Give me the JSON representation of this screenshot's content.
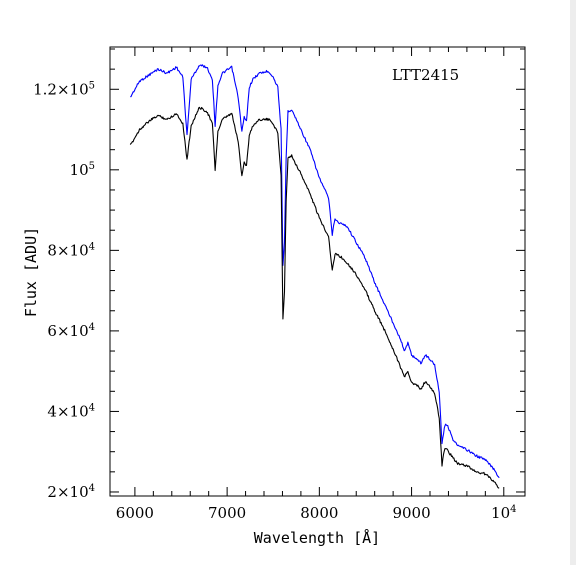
{
  "chart_data": {
    "type": "line",
    "annotation": "LTT2415",
    "xlabel": "Wavelength [Å]",
    "ylabel": "Flux [ADU]",
    "xlim": [
      5730,
      10230
    ],
    "ylim": [
      19000,
      130500
    ],
    "x_ticks": [
      {
        "value": 6000,
        "base": "6000",
        "sup": ""
      },
      {
        "value": 7000,
        "base": "7000",
        "sup": ""
      },
      {
        "value": 8000,
        "base": "8000",
        "sup": ""
      },
      {
        "value": 9000,
        "base": "9000",
        "sup": ""
      },
      {
        "value": 10000,
        "base": "10",
        "sup": "4"
      }
    ],
    "y_ticks": [
      {
        "value": 20000,
        "base": "2×10",
        "sup": "4"
      },
      {
        "value": 40000,
        "base": "4×10",
        "sup": "4"
      },
      {
        "value": 60000,
        "base": "6×10",
        "sup": "4"
      },
      {
        "value": 80000,
        "base": "8×10",
        "sup": "4"
      },
      {
        "value": 100000,
        "base": "10",
        "sup": "5"
      },
      {
        "value": 120000,
        "base": "1.2×10",
        "sup": "5"
      }
    ],
    "series": [
      {
        "color": "#0000ff",
        "x": [
          5950,
          6050,
          6150,
          6250,
          6350,
          6450,
          6520,
          6565,
          6610,
          6700,
          6780,
          6840,
          6870,
          6900,
          6950,
          7050,
          7120,
          7160,
          7185,
          7210,
          7240,
          7280,
          7350,
          7450,
          7500,
          7550,
          7585,
          7605,
          7622,
          7640,
          7660,
          7700,
          7800,
          7900,
          8000,
          8100,
          8140,
          8170,
          8200,
          8300,
          8400,
          8500,
          8600,
          8700,
          8800,
          8880,
          8920,
          8960,
          9000,
          9060,
          9100,
          9150,
          9200,
          9250,
          9300,
          9330,
          9355,
          9370,
          9400,
          9450,
          9500,
          9600,
          9700,
          9800,
          9900,
          9950
        ],
        "y": [
          118000,
          122000,
          123500,
          125000,
          124000,
          125500,
          123000,
          108500,
          122500,
          126000,
          125500,
          122500,
          111000,
          121000,
          124000,
          125500,
          118000,
          109500,
          113000,
          112000,
          120500,
          122500,
          124000,
          124500,
          123000,
          120500,
          110000,
          76000,
          82000,
          103000,
          114500,
          115000,
          110000,
          105000,
          98000,
          93000,
          84000,
          88000,
          87000,
          86000,
          82000,
          78000,
          72000,
          67000,
          62000,
          58000,
          55000,
          57000,
          54000,
          53000,
          52000,
          54000,
          53000,
          51500,
          45000,
          32000,
          36000,
          37000,
          36000,
          33000,
          31500,
          30500,
          29000,
          28000,
          25500,
          23500
        ]
      },
      {
        "color": "#000000",
        "x": [
          5950,
          6050,
          6150,
          6250,
          6350,
          6450,
          6520,
          6565,
          6610,
          6700,
          6780,
          6840,
          6870,
          6900,
          6950,
          7050,
          7120,
          7160,
          7185,
          7210,
          7240,
          7280,
          7350,
          7450,
          7500,
          7550,
          7585,
          7605,
          7622,
          7640,
          7660,
          7700,
          7800,
          7900,
          8000,
          8100,
          8140,
          8170,
          8200,
          8300,
          8400,
          8500,
          8600,
          8700,
          8800,
          8880,
          8920,
          8960,
          9000,
          9060,
          9100,
          9150,
          9200,
          9250,
          9300,
          9330,
          9355,
          9370,
          9400,
          9450,
          9500,
          9600,
          9700,
          9800,
          9900,
          9950
        ],
        "y": [
          106000,
          110000,
          112000,
          113500,
          112500,
          114000,
          111500,
          102500,
          111000,
          115500,
          114500,
          111500,
          100000,
          109500,
          112500,
          114000,
          107000,
          98500,
          102000,
          101000,
          108500,
          111000,
          112500,
          112500,
          111500,
          109000,
          98500,
          63000,
          70000,
          92000,
          103000,
          103500,
          99000,
          94000,
          88000,
          83500,
          75000,
          79000,
          79000,
          77000,
          74000,
          70000,
          65000,
          60500,
          55500,
          51000,
          48500,
          50000,
          47000,
          46500,
          45500,
          47500,
          46000,
          44500,
          38500,
          26500,
          30500,
          31000,
          30000,
          28500,
          27000,
          26500,
          25000,
          24500,
          22500,
          21000
        ]
      }
    ]
  }
}
